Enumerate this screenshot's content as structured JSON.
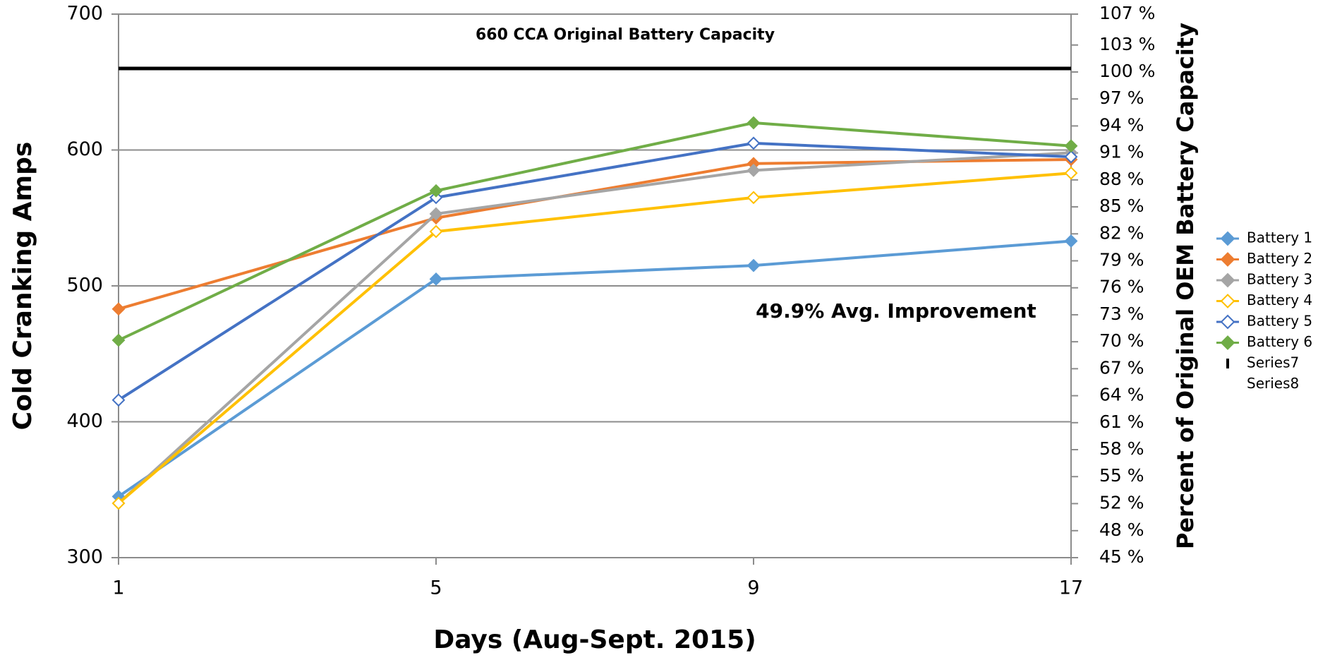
{
  "chart_data": {
    "type": "line",
    "xlabel": "Days (Aug-Sept. 2015)",
    "ylabel": "Cold Cranking Amps",
    "y2label": "Percent of Original OEM Battery Capacity",
    "annotations": [
      "660 CCA Original Battery Capacity",
      "49.9% Avg. Improvement"
    ],
    "categories": [
      "1",
      "5",
      "9",
      "17"
    ],
    "ylim": [
      300,
      700
    ],
    "yticks": [
      300,
      400,
      500,
      600,
      700
    ],
    "y2lim": [
      45.45,
      106.5
    ],
    "y2ticks": [
      {
        "value": 45.45,
        "label": "45 %"
      },
      {
        "value": 48.48,
        "label": "48 %"
      },
      {
        "value": 51.52,
        "label": "52 %"
      },
      {
        "value": 54.55,
        "label": "55 %"
      },
      {
        "value": 57.58,
        "label": "58 %"
      },
      {
        "value": 60.61,
        "label": "61 %"
      },
      {
        "value": 63.64,
        "label": "64 %"
      },
      {
        "value": 66.67,
        "label": "67 %"
      },
      {
        "value": 69.7,
        "label": "70 %"
      },
      {
        "value": 72.73,
        "label": "73 %"
      },
      {
        "value": 75.76,
        "label": "76 %"
      },
      {
        "value": 78.79,
        "label": "79 %"
      },
      {
        "value": 81.82,
        "label": "82 %"
      },
      {
        "value": 84.85,
        "label": "85 %"
      },
      {
        "value": 87.88,
        "label": "88 %"
      },
      {
        "value": 90.91,
        "label": "91 %"
      },
      {
        "value": 93.94,
        "label": "94 %"
      },
      {
        "value": 96.97,
        "label": "97 %"
      },
      {
        "value": 100,
        "label": "100 %"
      },
      {
        "value": 103.03,
        "label": "103 %"
      },
      {
        "value": 106.5,
        "label": "107 %"
      }
    ],
    "grid": true,
    "legend": "right",
    "series": [
      {
        "name": "Battery 1",
        "color": "#5b9bd5",
        "marker": "filled",
        "values": [
          345,
          505,
          515,
          533
        ]
      },
      {
        "name": "Battery 2",
        "color": "#ed7d31",
        "marker": "filled",
        "values": [
          483,
          550,
          590,
          593
        ]
      },
      {
        "name": "Battery 3",
        "color": "#a5a5a5",
        "marker": "filled",
        "values": [
          340,
          553,
          585,
          598
        ]
      },
      {
        "name": "Battery 4",
        "color": "#ffc000",
        "marker": "hollow",
        "values": [
          340,
          540,
          565,
          583
        ]
      },
      {
        "name": "Battery 5",
        "color": "#4472c4",
        "marker": "hollow",
        "values": [
          416,
          565,
          605,
          595
        ]
      },
      {
        "name": "Battery 6",
        "color": "#70ad47",
        "marker": "filled",
        "values": [
          460,
          570,
          620,
          603
        ]
      },
      {
        "name": "Series7",
        "color": "#000000",
        "marker": "none",
        "values": [
          660,
          660,
          660,
          660
        ]
      },
      {
        "name": "Series8",
        "color": "none",
        "marker": "none",
        "values": [
          null,
          null,
          null,
          null
        ]
      }
    ]
  }
}
